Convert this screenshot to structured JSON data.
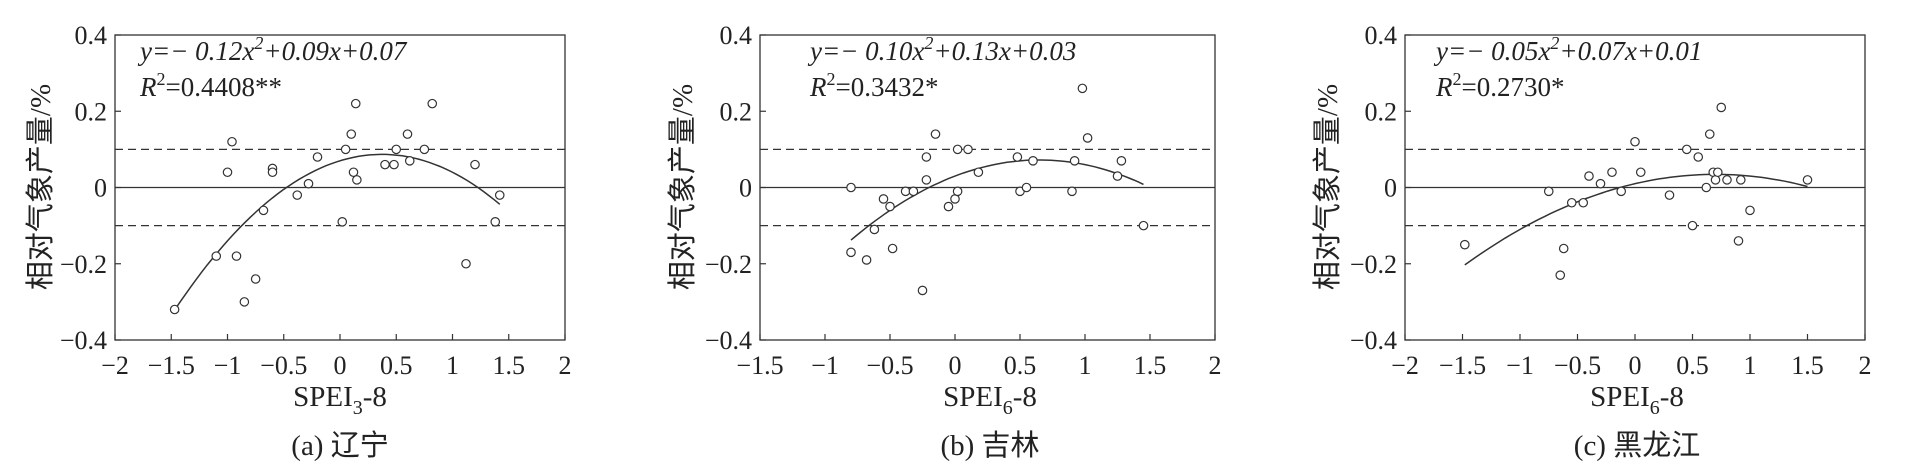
{
  "chart_data": [
    {
      "type": "scatter",
      "caption": "(a)  辽宁",
      "ylabel": "相对气象产量/%",
      "xlabel": {
        "base": "SPEI",
        "sub": "3",
        "suffix": "-8"
      },
      "equation": {
        "prefix": "y=− 0.12x",
        "sup": "2",
        "rest": "+0.09x+0.07"
      },
      "r2": {
        "value": "=0.4408**"
      },
      "xlim": [
        -2,
        2
      ],
      "ylim": [
        -0.4,
        0.4
      ],
      "xticks": [
        "−2",
        "−1.5",
        "−1",
        "−0.5",
        "0",
        "0.5",
        "1",
        "1.5",
        "2"
      ],
      "yticks": [
        "0.4",
        "0.2",
        "0",
        "−0.2",
        "−0.4"
      ],
      "reference_lines": [
        0.1,
        -0.1
      ],
      "fit": {
        "a": -0.12,
        "b": 0.09,
        "c": 0.07,
        "x_range": [
          -1.47,
          1.42
        ]
      },
      "points": [
        [
          -1.47,
          -0.32
        ],
        [
          -1.1,
          -0.18
        ],
        [
          -1.0,
          0.04
        ],
        [
          -0.96,
          0.12
        ],
        [
          -0.92,
          -0.18
        ],
        [
          -0.85,
          -0.3
        ],
        [
          -0.75,
          -0.24
        ],
        [
          -0.68,
          -0.06
        ],
        [
          -0.6,
          0.05
        ],
        [
          -0.6,
          0.04
        ],
        [
          -0.38,
          -0.02
        ],
        [
          -0.28,
          0.01
        ],
        [
          -0.2,
          0.08
        ],
        [
          0.02,
          -0.09
        ],
        [
          0.05,
          0.1
        ],
        [
          0.1,
          0.14
        ],
        [
          0.12,
          0.04
        ],
        [
          0.14,
          0.22
        ],
        [
          0.15,
          0.02
        ],
        [
          0.4,
          0.06
        ],
        [
          0.48,
          0.06
        ],
        [
          0.5,
          0.1
        ],
        [
          0.6,
          0.14
        ],
        [
          0.62,
          0.07
        ],
        [
          0.75,
          0.1
        ],
        [
          0.82,
          0.22
        ],
        [
          1.12,
          -0.2
        ],
        [
          1.2,
          0.06
        ],
        [
          1.38,
          -0.09
        ],
        [
          1.42,
          -0.02
        ]
      ]
    },
    {
      "type": "scatter",
      "caption": "(b)  吉林",
      "ylabel": "相对气象产量/%",
      "xlabel": {
        "base": "SPEI",
        "sub": "6",
        "suffix": "-8"
      },
      "equation": {
        "prefix": "y=− 0.10x",
        "sup": "2",
        "rest": "+0.13x+0.03"
      },
      "r2": {
        "value": "=0.3432*"
      },
      "xlim": [
        -1.5,
        2
      ],
      "ylim": [
        -0.4,
        0.4
      ],
      "xticks": [
        "−1.5",
        "−1",
        "−0.5",
        "0",
        "0.5",
        "1",
        "1.5",
        "2"
      ],
      "yticks": [
        "0.4",
        "0.2",
        "0",
        "−0.2",
        "−0.4"
      ],
      "reference_lines": [
        0.1,
        -0.1
      ],
      "fit": {
        "a": -0.1,
        "b": 0.13,
        "c": 0.03,
        "x_range": [
          -0.8,
          1.45
        ]
      },
      "points": [
        [
          -0.8,
          0.0
        ],
        [
          -0.8,
          -0.17
        ],
        [
          -0.68,
          -0.19
        ],
        [
          -0.62,
          -0.11
        ],
        [
          -0.55,
          -0.03
        ],
        [
          -0.5,
          -0.05
        ],
        [
          -0.48,
          -0.16
        ],
        [
          -0.38,
          -0.01
        ],
        [
          -0.32,
          -0.01
        ],
        [
          -0.25,
          -0.27
        ],
        [
          -0.22,
          0.02
        ],
        [
          -0.22,
          0.08
        ],
        [
          -0.15,
          0.14
        ],
        [
          -0.05,
          -0.05
        ],
        [
          0.0,
          -0.03
        ],
        [
          0.02,
          0.1
        ],
        [
          0.02,
          -0.01
        ],
        [
          0.1,
          0.1
        ],
        [
          0.18,
          0.04
        ],
        [
          0.48,
          0.08
        ],
        [
          0.5,
          -0.01
        ],
        [
          0.55,
          0.0
        ],
        [
          0.6,
          0.07
        ],
        [
          0.9,
          -0.01
        ],
        [
          0.92,
          0.07
        ],
        [
          0.98,
          0.26
        ],
        [
          1.02,
          0.13
        ],
        [
          1.25,
          0.03
        ],
        [
          1.28,
          0.07
        ],
        [
          1.45,
          -0.1
        ]
      ]
    },
    {
      "type": "scatter",
      "caption": "(c)  黑龙江",
      "ylabel": "相对气象产量/%",
      "xlabel": {
        "base": "SPEI",
        "sub": "6",
        "suffix": "-8"
      },
      "equation": {
        "prefix": "y=− 0.05x",
        "sup": "2",
        "rest": "+0.07x+0.01"
      },
      "r2": {
        "value": "=0.2730*"
      },
      "xlim": [
        -2,
        2
      ],
      "ylim": [
        -0.4,
        0.4
      ],
      "xticks": [
        "−2",
        "−1.5",
        "−1",
        "−0.5",
        "0",
        "0.5",
        "1",
        "1.5",
        "2"
      ],
      "yticks": [
        "0.4",
        "0.2",
        "0",
        "−0.2",
        "−0.4"
      ],
      "reference_lines": [
        0.1,
        -0.1
      ],
      "fit": {
        "a": -0.05,
        "b": 0.07,
        "c": 0.01,
        "x_range": [
          -1.48,
          1.5
        ]
      },
      "points": [
        [
          -1.48,
          -0.15
        ],
        [
          -0.75,
          -0.01
        ],
        [
          -0.65,
          -0.23
        ],
        [
          -0.62,
          -0.16
        ],
        [
          -0.55,
          -0.04
        ],
        [
          -0.45,
          -0.04
        ],
        [
          -0.4,
          0.03
        ],
        [
          -0.3,
          0.01
        ],
        [
          -0.2,
          0.04
        ],
        [
          -0.12,
          -0.01
        ],
        [
          0.0,
          0.12
        ],
        [
          0.05,
          0.04
        ],
        [
          0.3,
          -0.02
        ],
        [
          0.45,
          0.1
        ],
        [
          0.5,
          -0.1
        ],
        [
          0.55,
          0.08
        ],
        [
          0.62,
          0.0
        ],
        [
          0.65,
          0.14
        ],
        [
          0.68,
          0.04
        ],
        [
          0.7,
          0.02
        ],
        [
          0.72,
          0.04
        ],
        [
          0.75,
          0.21
        ],
        [
          0.8,
          0.02
        ],
        [
          0.9,
          -0.14
        ],
        [
          0.92,
          0.02
        ],
        [
          1.0,
          -0.06
        ],
        [
          1.5,
          0.02
        ]
      ]
    }
  ]
}
